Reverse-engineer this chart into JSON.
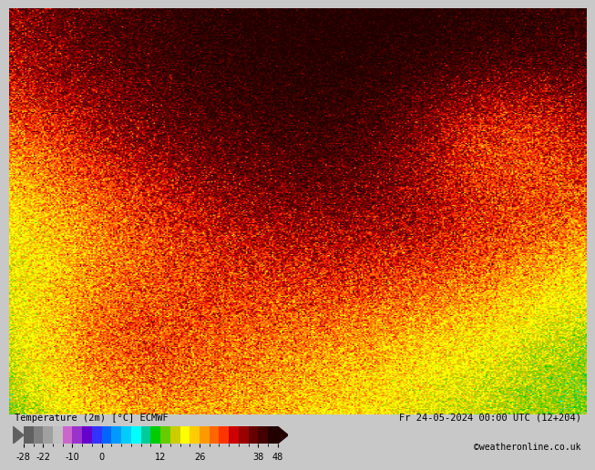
{
  "title_left": "Temperature (2m) [°C] ECMWF",
  "title_right": "Fr 24-05-2024 00:00 UTC (12+204)",
  "subtitle_right": "©weatheronline.co.uk",
  "colorbar_ticks": [
    -28,
    -22,
    -10,
    0,
    12,
    26,
    38,
    48
  ],
  "colorbar_colors": [
    "#606060",
    "#808080",
    "#a0a0a0",
    "#c0c0c0",
    "#cc66cc",
    "#9933cc",
    "#6600cc",
    "#3333ff",
    "#0066ff",
    "#0099ff",
    "#00ccff",
    "#00ffff",
    "#00cc99",
    "#00cc00",
    "#66cc00",
    "#cccc00",
    "#ffff00",
    "#ffcc00",
    "#ff9900",
    "#ff6600",
    "#ff3300",
    "#cc0000",
    "#990000",
    "#660000",
    "#440000",
    "#220000"
  ],
  "colorbar_bounds": [
    -28,
    -25,
    -22,
    -18,
    -14,
    -10,
    -6,
    -2,
    0,
    2,
    4,
    6,
    8,
    10,
    12,
    16,
    20,
    24,
    26,
    28,
    30,
    32,
    34,
    36,
    38,
    42,
    48
  ],
  "bg_color": "#c8c8c8",
  "fig_width": 6.34,
  "fig_height": 4.9,
  "green_line_color": "#00bb00",
  "bottom_bar_color": "#c8c8c8",
  "text_color": "#000000"
}
